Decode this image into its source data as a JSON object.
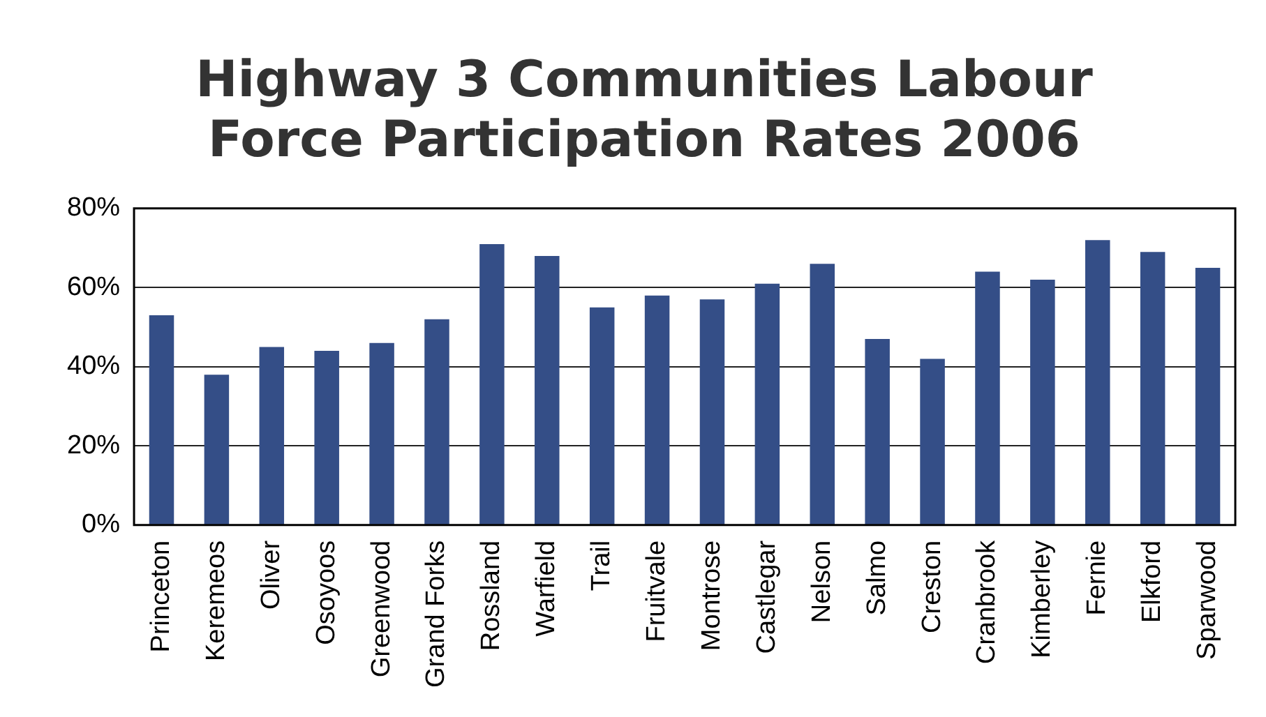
{
  "chart_data": {
    "type": "bar",
    "title": [
      "Highway 3 Communities Labour",
      "Force Participation Rates 2006"
    ],
    "categories": [
      "Princeton",
      "Keremeos",
      "Oliver",
      "Osoyoos",
      "Greenwood",
      "Grand Forks",
      "Rossland",
      "Warfield",
      "Trail",
      "Fruitvale",
      "Montrose",
      "Castlegar",
      "Nelson",
      "Salmo",
      "Creston",
      "Cranbrook",
      "Kimberley",
      "Fernie",
      "Elkford",
      "Sparwood"
    ],
    "values": [
      53,
      38,
      45,
      44,
      46,
      52,
      71,
      68,
      55,
      58,
      57,
      61,
      66,
      47,
      42,
      64,
      62,
      72,
      69,
      65
    ],
    "color": "#344e87",
    "ylim": [
      0,
      80
    ],
    "yticks": [
      {
        "value": 0,
        "label": "0%"
      },
      {
        "value": 20,
        "label": "20%"
      },
      {
        "value": 40,
        "label": "40%"
      },
      {
        "value": 60,
        "label": "60%"
      },
      {
        "value": 80,
        "label": "80%"
      }
    ],
    "grid": "y"
  }
}
